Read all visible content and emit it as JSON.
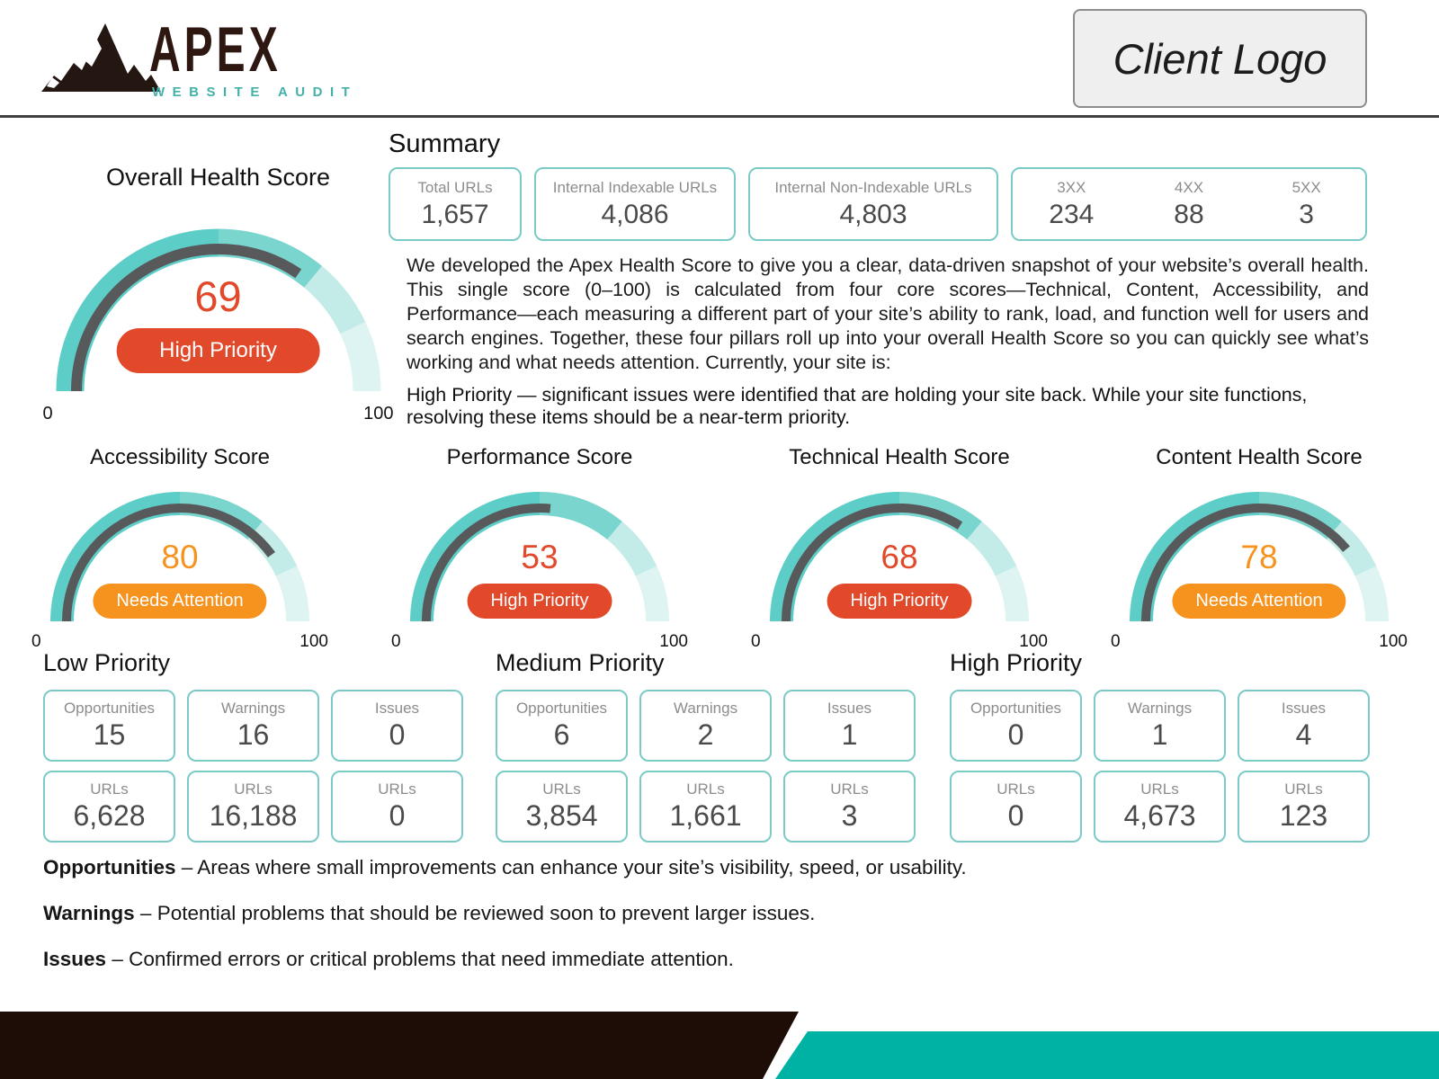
{
  "header": {
    "brand_name": "APEX",
    "brand_subtitle": "WEBSITE AUDIT",
    "client_logo_label": "Client Logo"
  },
  "summary": {
    "title": "Summary",
    "stat_cards": [
      {
        "label": "Total URLs",
        "value": "1,657"
      },
      {
        "label": "Internal Indexable URLs",
        "value": "4,086"
      },
      {
        "label": "Internal Non-Indexable URLs",
        "value": "4,803"
      }
    ],
    "status_codes": [
      {
        "label": "3XX",
        "value": "234"
      },
      {
        "label": "4XX",
        "value": "88"
      },
      {
        "label": "5XX",
        "value": "3"
      }
    ],
    "description": "We developed the Apex Health Score to give you a clear, data-driven snapshot of your website’s overall health. This single score (0–100) is calculated from four core scores—Technical, Content, Accessibility, and Performance—each measuring a different part of your site’s ability to rank, load, and function well for users and search engines. Together, these four pillars roll up into your overall Health Score so you can quickly see what’s working and what needs attention. Currently, your site is:",
    "status_line": "High Priority — significant issues were identified that are holding your site back. While your site functions, resolving these items should be a near-term priority."
  },
  "chart_data": [
    {
      "type": "gauge",
      "title": "Overall Health Score",
      "value": 69,
      "range": [
        0,
        100
      ],
      "status_label": "High Priority",
      "status_color": "#e2492a",
      "value_color": "#e2492a",
      "needle_color": "#58595b",
      "segments": [
        {
          "to": 50,
          "color": "#5ccdc7"
        },
        {
          "to": 72,
          "color": "#7ad5cf"
        },
        {
          "to": 86,
          "color": "#c3ebe8"
        },
        {
          "to": 100,
          "color": "#def4f2"
        }
      ]
    },
    {
      "type": "gauge",
      "title": "Accessibility Score",
      "value": 80,
      "range": [
        0,
        100
      ],
      "status_label": "Needs Attention",
      "status_color": "#f6921e",
      "value_color": "#f6921e",
      "needle_color": "#58595b",
      "segments": [
        {
          "to": 50,
          "color": "#5ccdc7"
        },
        {
          "to": 72,
          "color": "#7ad5cf"
        },
        {
          "to": 86,
          "color": "#c3ebe8"
        },
        {
          "to": 100,
          "color": "#def4f2"
        }
      ]
    },
    {
      "type": "gauge",
      "title": "Performance Score",
      "value": 53,
      "range": [
        0,
        100
      ],
      "status_label": "High Priority",
      "status_color": "#e2492a",
      "value_color": "#e2492a",
      "needle_color": "#58595b",
      "segments": [
        {
          "to": 50,
          "color": "#5ccdc7"
        },
        {
          "to": 72,
          "color": "#7ad5cf"
        },
        {
          "to": 86,
          "color": "#c3ebe8"
        },
        {
          "to": 100,
          "color": "#def4f2"
        }
      ]
    },
    {
      "type": "gauge",
      "title": "Technical Health Score",
      "value": 68,
      "range": [
        0,
        100
      ],
      "status_label": "High Priority",
      "status_color": "#e2492a",
      "value_color": "#e2492a",
      "needle_color": "#58595b",
      "segments": [
        {
          "to": 50,
          "color": "#5ccdc7"
        },
        {
          "to": 72,
          "color": "#7ad5cf"
        },
        {
          "to": 86,
          "color": "#c3ebe8"
        },
        {
          "to": 100,
          "color": "#def4f2"
        }
      ]
    },
    {
      "type": "gauge",
      "title": "Content Health Score",
      "value": 78,
      "range": [
        0,
        100
      ],
      "status_label": "Needs Attention",
      "status_color": "#f6921e",
      "value_color": "#f6921e",
      "needle_color": "#58595b",
      "segments": [
        {
          "to": 50,
          "color": "#5ccdc7"
        },
        {
          "to": 72,
          "color": "#7ad5cf"
        },
        {
          "to": 86,
          "color": "#c3ebe8"
        },
        {
          "to": 100,
          "color": "#def4f2"
        }
      ]
    }
  ],
  "priorities": [
    {
      "title": "Low Priority",
      "cards": [
        {
          "label": "Opportunities",
          "value": "15"
        },
        {
          "label": "Warnings",
          "value": "16"
        },
        {
          "label": "Issues",
          "value": "0"
        },
        {
          "label": "URLs",
          "value": "6,628"
        },
        {
          "label": "URLs",
          "value": "16,188"
        },
        {
          "label": "URLs",
          "value": "0"
        }
      ]
    },
    {
      "title": "Medium Priority",
      "cards": [
        {
          "label": "Opportunities",
          "value": "6"
        },
        {
          "label": "Warnings",
          "value": "2"
        },
        {
          "label": "Issues",
          "value": "1"
        },
        {
          "label": "URLs",
          "value": "3,854"
        },
        {
          "label": "URLs",
          "value": "1,661"
        },
        {
          "label": "URLs",
          "value": "3"
        }
      ]
    },
    {
      "title": "High Priority",
      "cards": [
        {
          "label": "Opportunities",
          "value": "0"
        },
        {
          "label": "Warnings",
          "value": "1"
        },
        {
          "label": "Issues",
          "value": "4"
        },
        {
          "label": "URLs",
          "value": "0"
        },
        {
          "label": "URLs",
          "value": "4,673"
        },
        {
          "label": "URLs",
          "value": "123"
        }
      ]
    }
  ],
  "definitions": [
    {
      "term": "Opportunities",
      "text": " – Areas where small improvements can enhance your site’s visibility, speed, or usability."
    },
    {
      "term": "Warnings",
      "text": " – Potential problems that should be reviewed soon to prevent larger issues."
    },
    {
      "term": "Issues",
      "text": " – Confirmed errors or critical problems that need immediate attention."
    }
  ],
  "colors": {
    "brand_teal": "#00b2a3",
    "brand_dark": "#1e0c07",
    "card_border_teal": "#7acac5",
    "high_priority_red": "#e2492a",
    "needs_attention_orange": "#f6921e",
    "gauge_needle_gray": "#58595b"
  }
}
